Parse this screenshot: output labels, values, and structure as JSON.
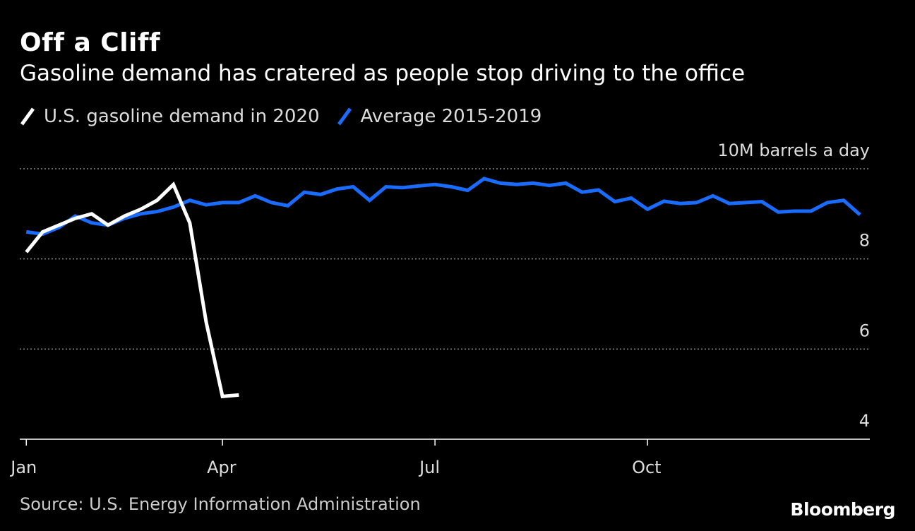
{
  "title": "Off a Cliff",
  "subtitle": "Gasoline demand has cratered as people stop driving to the office",
  "source": "Source: U.S. Energy Information Administration",
  "logo": "Bloomberg",
  "colors": {
    "background": "#000000",
    "series_2020": "#ffffff",
    "series_avg": "#1a6cff",
    "grid": "#888888"
  },
  "chart_data": {
    "type": "line",
    "unit_label": "10M barrels a day",
    "x_unit": "week",
    "xlim": [
      0.6,
      52.6
    ],
    "ylim": [
      4,
      10
    ],
    "y_ticks": [
      4,
      6,
      8
    ],
    "y_tick_labels": [
      "4",
      "6",
      "8"
    ],
    "x_ticks": [
      1,
      13,
      26,
      39
    ],
    "x_tick_labels": [
      "Jan",
      "Apr",
      "Jul",
      "Oct"
    ],
    "grid": "dotted horizontal at 6, 8, 10",
    "legend_position": "top-left",
    "series": [
      {
        "name": "U.S. gasoline demand in 2020",
        "color": "#ffffff",
        "x": [
          1,
          2,
          3,
          4,
          5,
          6,
          7,
          8,
          9,
          10,
          11,
          12,
          13,
          14
        ],
        "values": [
          8.15,
          8.6,
          8.75,
          8.9,
          9.0,
          8.75,
          8.95,
          9.1,
          9.3,
          9.65,
          8.8,
          6.6,
          4.95,
          4.98
        ]
      },
      {
        "name": "Average 2015-2019",
        "color": "#1a6cff",
        "x": [
          1,
          2,
          3,
          4,
          5,
          6,
          7,
          8,
          9,
          10,
          11,
          12,
          13,
          14,
          15,
          16,
          17,
          18,
          19,
          20,
          21,
          22,
          23,
          24,
          25,
          26,
          27,
          28,
          29,
          30,
          31,
          32,
          33,
          34,
          35,
          36,
          37,
          38,
          39,
          40,
          41,
          42,
          43,
          44,
          45,
          46,
          47,
          48,
          49,
          50,
          51,
          52
        ],
        "values": [
          8.6,
          8.55,
          8.7,
          8.95,
          8.8,
          8.75,
          8.9,
          9.0,
          9.05,
          9.15,
          9.3,
          9.2,
          9.25,
          9.25,
          9.4,
          9.25,
          9.18,
          9.48,
          9.43,
          9.55,
          9.6,
          9.3,
          9.6,
          9.58,
          9.62,
          9.65,
          9.6,
          9.52,
          9.78,
          9.68,
          9.65,
          9.68,
          9.63,
          9.68,
          9.48,
          9.53,
          9.27,
          9.35,
          9.1,
          9.28,
          9.23,
          9.25,
          9.4,
          9.23,
          9.25,
          9.27,
          9.04,
          9.06,
          9.06,
          9.25,
          9.3,
          8.98
        ]
      }
    ]
  }
}
